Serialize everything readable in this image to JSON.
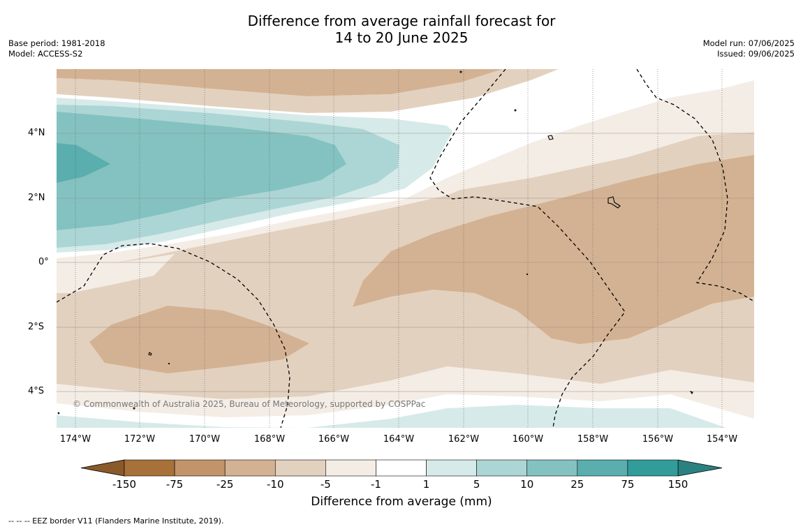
{
  "title": {
    "line1": "Difference from average rainfall forecast for",
    "line2": "14 to 20 June 2025"
  },
  "meta_left": {
    "base_period": "Base period: 1981-2018",
    "model": "Model: ACCESS-S2"
  },
  "meta_right": {
    "model_run": "Model run: 07/06/2025",
    "issued": "Issued: 09/06/2025"
  },
  "y_ticks": [
    "4°N",
    "2°N",
    "0°",
    "2°S",
    "4°S"
  ],
  "x_ticks": [
    "174°W",
    "172°W",
    "170°W",
    "168°W",
    "166°W",
    "164°W",
    "162°W",
    "160°W",
    "158°W",
    "156°W",
    "154°W"
  ],
  "copyright": "© Commonwealth of Australia 2025, Bureau of Meteorology, supported by COSPPac",
  "colorbar": {
    "labels": [
      "-150",
      "-75",
      "-25",
      "-10",
      "-5",
      "-1",
      "1",
      "5",
      "10",
      "25",
      "75",
      "150"
    ],
    "colors": [
      "#a9713a",
      "#c19469",
      "#d3b293",
      "#e3d1bf",
      "#f4ede6",
      "#ffffff",
      "#d6eae9",
      "#acd6d5",
      "#83c2c0",
      "#5aaead",
      "#329c9b"
    ],
    "extend_low_color": "#8a5a2b",
    "extend_high_color": "#2a8280",
    "title": "Difference from average (mm)"
  },
  "legend_note": "--  --  -- EEZ border V11 (Flanders Marine Institute, 2019)."
}
